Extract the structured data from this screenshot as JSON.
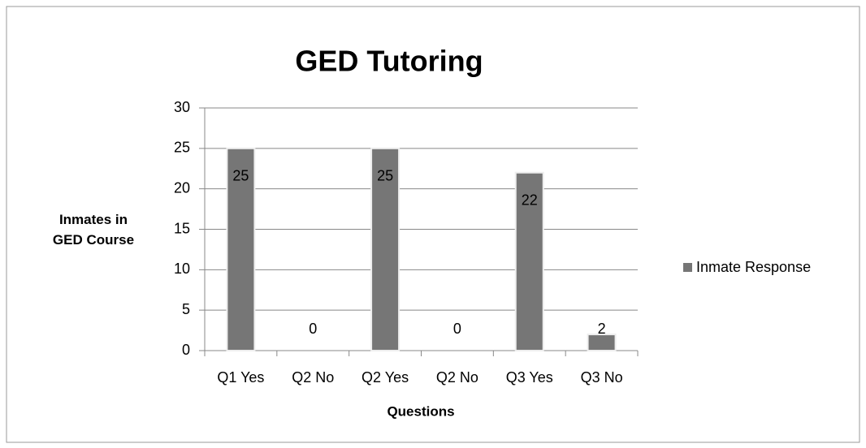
{
  "chart_data": {
    "type": "bar",
    "title": "GED Tutoring",
    "x_label": "Questions",
    "y_label": "Inmates in GED Course",
    "categories": [
      "Q1 Yes",
      "Q2 No",
      "Q2 Yes",
      "Q2 No",
      "Q3 Yes",
      "Q3 No"
    ],
    "series": [
      {
        "name": "Inmate Response",
        "color": "#767676",
        "values": [
          25,
          0,
          25,
          0,
          22,
          2
        ]
      }
    ],
    "ylim": [
      0,
      30
    ],
    "yticks": [
      0,
      5,
      10,
      15,
      20,
      25,
      30
    ],
    "grid": true,
    "legend": "right"
  }
}
